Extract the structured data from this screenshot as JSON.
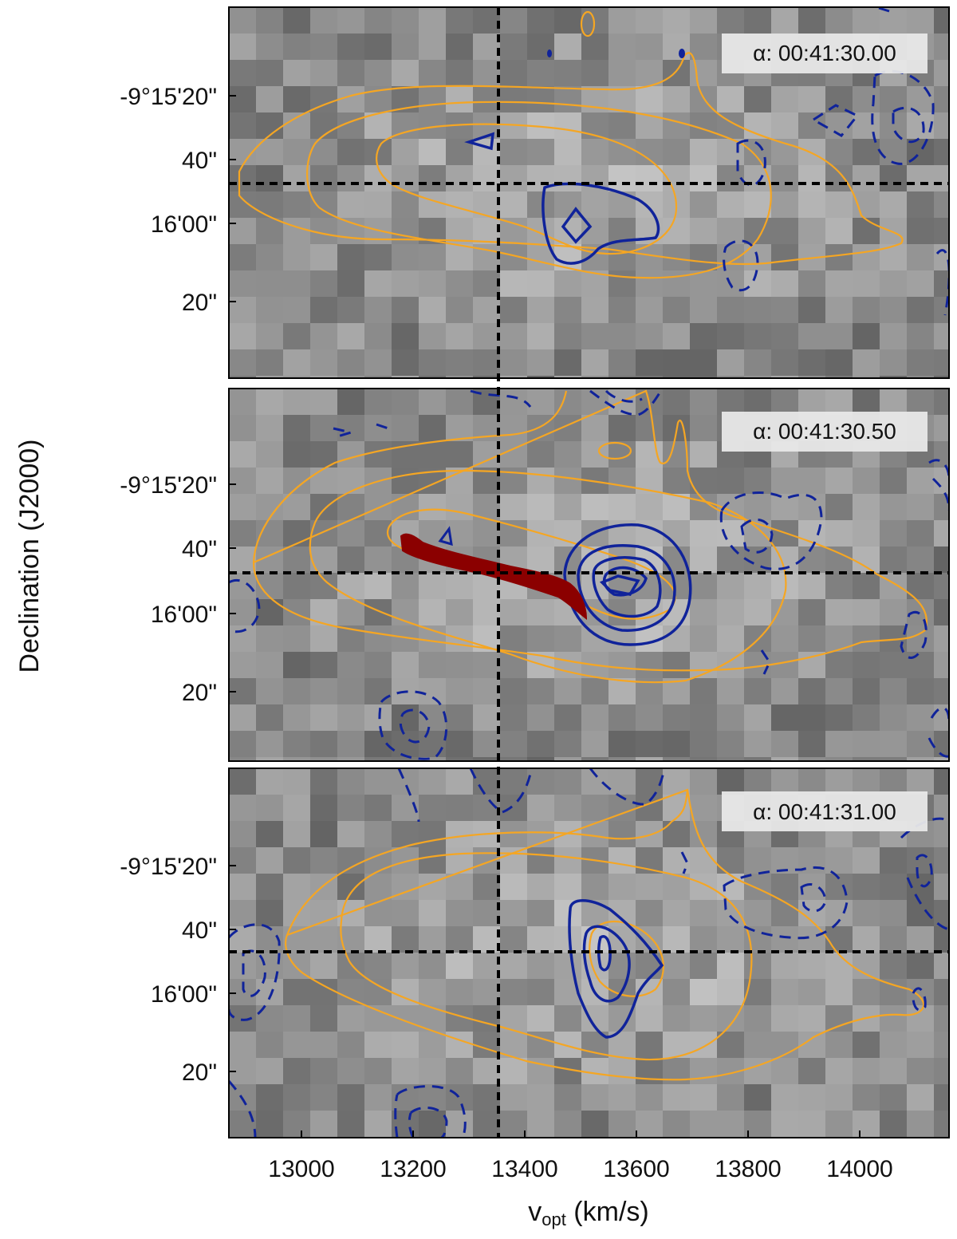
{
  "chart_data": {
    "type": "position-velocity slices",
    "xlabel_main": "v",
    "xlabel_sub": "opt",
    "xlabel_unit": " (km/s)",
    "ylabel": "Declination (J2000)",
    "x_ticks": [
      13000,
      13200,
      13400,
      13600,
      13800,
      14000
    ],
    "x_tick_labels": [
      "13000",
      "13200",
      "13400",
      "13600",
      "13800",
      "14000"
    ],
    "xlim": [
      12870,
      14160
    ],
    "y_tick_labels": [
      "-9°15'20\"",
      "40\"",
      "16'00\"",
      "20\""
    ],
    "reference_velocity": 13358,
    "reference_declination": "-9°15'48\"",
    "contour_colors": {
      "outer": "#F5A623",
      "positive": "#10239A",
      "negative": "#10239A",
      "model": "#8B0000"
    },
    "panels": [
      {
        "label": "α: 00:41:30.00"
      },
      {
        "label": "α: 00:41:30.50",
        "model_trace": true
      },
      {
        "label": "α: 00:41:31.00"
      }
    ]
  }
}
